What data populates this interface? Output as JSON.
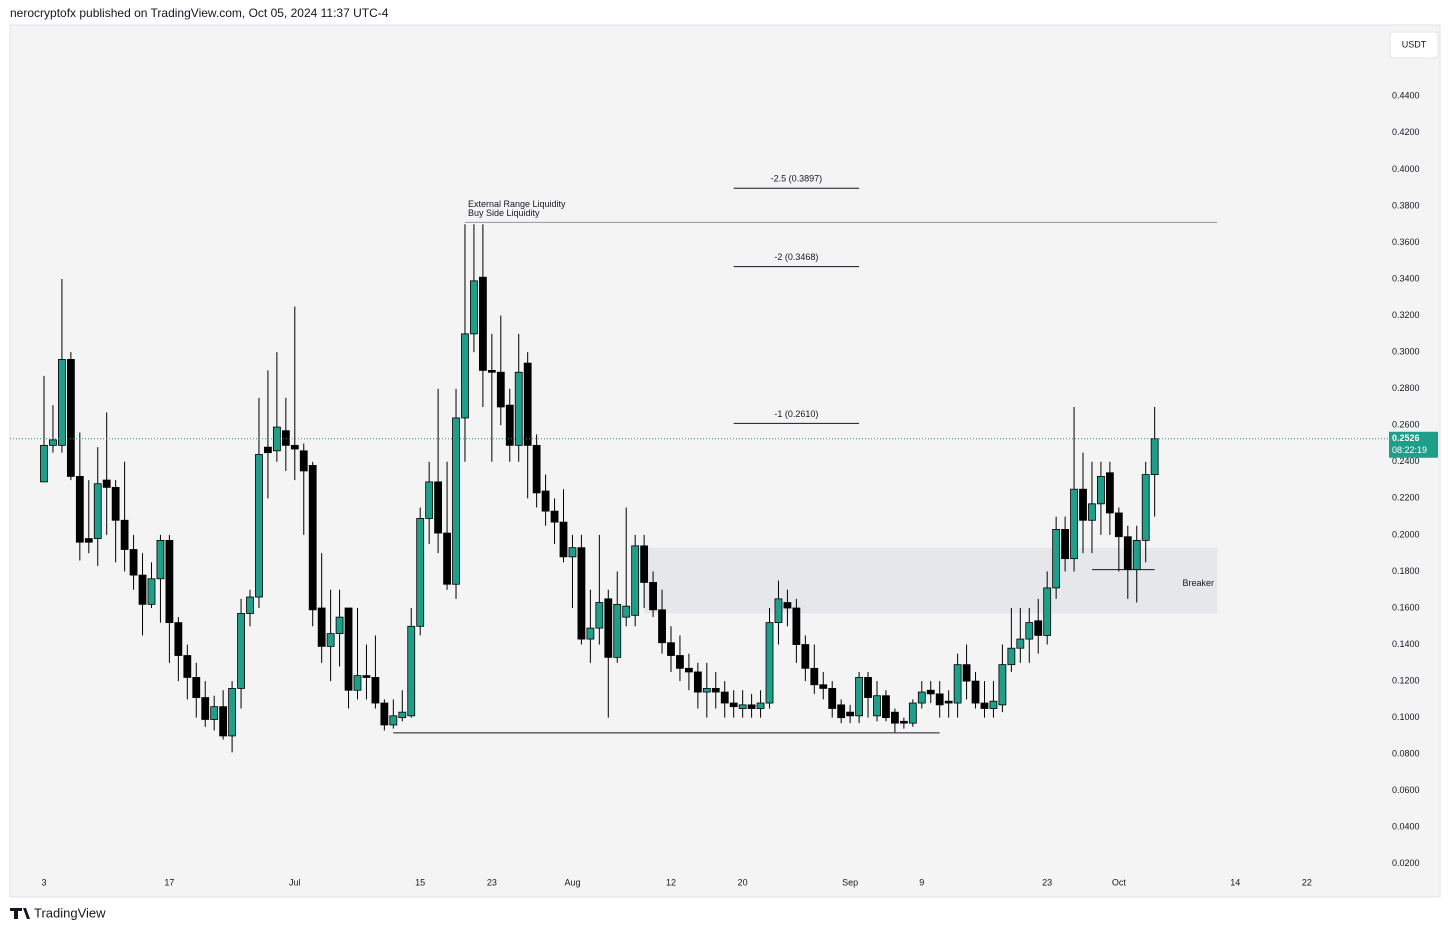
{
  "header": "nerocryptofx published on TradingView.com, Oct 05, 2024 11:37 UTC-4",
  "footer": "TradingView",
  "chart_data": {
    "type": "candlestick",
    "currency": "USDT",
    "up_color": "#1f9e89",
    "down_color": "#000000",
    "categories": [
      "3",
      null,
      null,
      null,
      null,
      null,
      null,
      null,
      null,
      null,
      null,
      null,
      null,
      null,
      "17",
      null,
      null,
      null,
      null,
      null,
      null,
      null,
      null,
      null,
      null,
      null,
      null,
      null,
      "Jul",
      null,
      null,
      null,
      null,
      null,
      null,
      null,
      null,
      null,
      null,
      null,
      null,
      null,
      "15",
      null,
      null,
      null,
      null,
      null,
      null,
      null,
      "23",
      null,
      null,
      null,
      null,
      null,
      null,
      null,
      null,
      "Aug",
      null,
      null,
      null,
      null,
      null,
      null,
      null,
      null,
      null,
      null,
      "12",
      null,
      null,
      null,
      null,
      null,
      null,
      null,
      "20",
      null,
      null,
      null,
      null,
      null,
      null,
      null,
      null,
      null,
      null,
      null,
      "Sep",
      null,
      null,
      null,
      null,
      null,
      null,
      null,
      "9",
      null,
      null,
      null,
      null,
      null,
      null,
      null,
      null,
      null,
      null,
      null,
      null,
      null,
      "23",
      null,
      null,
      null,
      null,
      null,
      null,
      null,
      "Oct",
      null,
      null,
      null,
      null,
      null,
      null,
      null,
      null,
      null,
      null,
      null,
      null,
      "14",
      null,
      null,
      null,
      null,
      null,
      null,
      null,
      "22",
      null,
      null,
      null,
      null,
      null,
      null,
      null,
      null
    ],
    "open": [
      0.229,
      0.249,
      0.249,
      0.296,
      0.232,
      0.198,
      0.198,
      0.23,
      0.226,
      0.208,
      0.192,
      0.178,
      0.162,
      0.176,
      0.197,
      0.152,
      0.134,
      0.122,
      0.111,
      0.099,
      0.106,
      0.09,
      0.116,
      0.157,
      0.166,
      0.248,
      0.246,
      0.257,
      0.249,
      0.246,
      0.238,
      0.16,
      0.139,
      0.146,
      0.16,
      0.115,
      0.123,
      0.122,
      0.108,
      0.096,
      0.1,
      0.101,
      0.15,
      0.209,
      0.229,
      0.201,
      0.173,
      0.264,
      0.31,
      0.341,
      0.29,
      0.289,
      0.271,
      0.249,
      0.294,
      0.249,
      0.224,
      0.213,
      0.207,
      0.188,
      0.193,
      0.143,
      0.149,
      0.165,
      0.133,
      0.155,
      0.156,
      0.194,
      0.174,
      0.159,
      0.141,
      0.134,
      0.127,
      0.125,
      0.114,
      0.116,
      0.114,
      0.108,
      0.105,
      0.107,
      0.105,
      0.108,
      0.152,
      0.163,
      0.16,
      0.14,
      0.127,
      0.118,
      0.116,
      0.107,
      0.103,
      0.101,
      0.122,
      0.101,
      0.112,
      0.103,
      0.098,
      0.097,
      0.108,
      0.115,
      0.113,
      0.109,
      0.108,
      0.129,
      0.12,
      0.108,
      0.105,
      0.107,
      0.129,
      0.138,
      0.143,
      0.153,
      0.145,
      0.171,
      0.203,
      0.187,
      0.225,
      0.208,
      0.217,
      0.234,
      0.212,
      0.199,
      0.181,
      0.197,
      0.233,
      null,
      null,
      null,
      null,
      null,
      null,
      null,
      null,
      null,
      null,
      null,
      null,
      null,
      null,
      null,
      null,
      null,
      null,
      null,
      null,
      null,
      null,
      null,
      null,
      null
    ],
    "high": [
      0.287,
      0.271,
      0.34,
      0.3,
      0.256,
      0.23,
      0.248,
      0.267,
      0.23,
      0.24,
      0.2,
      0.19,
      0.185,
      0.2,
      0.2,
      0.155,
      0.14,
      0.13,
      0.12,
      0.112,
      0.115,
      0.12,
      0.165,
      0.17,
      0.275,
      0.29,
      0.3,
      0.275,
      0.325,
      0.25,
      0.24,
      0.19,
      0.17,
      0.17,
      0.16,
      0.16,
      0.14,
      0.145,
      0.11,
      0.11,
      0.115,
      0.16,
      0.215,
      0.24,
      0.28,
      0.24,
      0.28,
      0.37,
      0.37,
      0.37,
      0.31,
      0.32,
      0.28,
      0.31,
      0.3,
      0.255,
      0.233,
      0.22,
      0.225,
      0.2,
      0.2,
      0.17,
      0.2,
      0.17,
      0.18,
      0.215,
      0.2,
      0.2,
      0.18,
      0.17,
      0.15,
      0.145,
      0.135,
      0.13,
      0.13,
      0.125,
      0.12,
      0.115,
      0.115,
      0.113,
      0.115,
      0.16,
      0.175,
      0.17,
      0.165,
      0.145,
      0.14,
      0.125,
      0.12,
      0.11,
      0.107,
      0.125,
      0.125,
      0.12,
      0.115,
      0.105,
      0.1,
      0.11,
      0.12,
      0.12,
      0.12,
      0.115,
      0.135,
      0.14,
      0.125,
      0.12,
      0.12,
      0.14,
      0.16,
      0.16,
      0.16,
      0.165,
      0.18,
      0.21,
      0.21,
      0.27,
      0.245,
      0.24,
      0.24,
      0.24,
      0.215,
      0.205,
      0.205,
      0.24,
      0.27,
      null,
      null,
      null,
      null,
      null,
      null,
      null,
      null,
      null,
      null,
      null,
      null,
      null,
      null,
      null,
      null,
      null,
      null,
      null,
      null,
      null,
      null,
      null,
      null,
      null
    ],
    "low": [
      0.229,
      0.245,
      0.245,
      0.23,
      0.186,
      0.19,
      0.183,
      0.2,
      0.185,
      0.18,
      0.17,
      0.145,
      0.16,
      0.152,
      0.13,
      0.12,
      0.11,
      0.1,
      0.095,
      0.093,
      0.088,
      0.081,
      0.105,
      0.15,
      0.16,
      0.22,
      0.24,
      0.235,
      0.23,
      0.2,
      0.15,
      0.13,
      0.12,
      0.128,
      0.105,
      0.11,
      0.11,
      0.105,
      0.093,
      0.094,
      0.098,
      0.1,
      0.145,
      0.195,
      0.19,
      0.17,
      0.165,
      0.24,
      0.3,
      0.27,
      0.24,
      0.26,
      0.24,
      0.24,
      0.22,
      0.215,
      0.205,
      0.195,
      0.185,
      0.16,
      0.14,
      0.13,
      0.14,
      0.1,
      0.13,
      0.15,
      0.15,
      0.16,
      0.155,
      0.135,
      0.125,
      0.12,
      0.115,
      0.105,
      0.1,
      0.105,
      0.1,
      0.1,
      0.1,
      0.1,
      0.1,
      0.105,
      0.14,
      0.15,
      0.13,
      0.12,
      0.113,
      0.11,
      0.1,
      0.097,
      0.097,
      0.097,
      0.1,
      0.098,
      0.098,
      0.092,
      0.094,
      0.095,
      0.105,
      0.108,
      0.1,
      0.1,
      0.1,
      0.11,
      0.105,
      0.1,
      0.1,
      0.103,
      0.125,
      0.13,
      0.13,
      0.135,
      0.14,
      0.165,
      0.18,
      0.18,
      0.19,
      0.19,
      0.2,
      0.2,
      0.18,
      0.165,
      0.163,
      0.185,
      0.21,
      null,
      null,
      null,
      null,
      null,
      null,
      null,
      null,
      null,
      null,
      null,
      null,
      null,
      null,
      null,
      null,
      null,
      null,
      null,
      null,
      null,
      null,
      null,
      null,
      null
    ],
    "close": [
      0.249,
      0.252,
      0.296,
      0.232,
      0.196,
      0.196,
      0.228,
      0.226,
      0.208,
      0.192,
      0.178,
      0.162,
      0.176,
      0.197,
      0.152,
      0.134,
      0.122,
      0.111,
      0.099,
      0.106,
      0.09,
      0.116,
      0.157,
      0.166,
      0.244,
      0.245,
      0.259,
      0.249,
      0.247,
      0.235,
      0.159,
      0.139,
      0.146,
      0.155,
      0.115,
      0.123,
      0.122,
      0.108,
      0.096,
      0.101,
      0.103,
      0.15,
      0.209,
      0.229,
      0.201,
      0.173,
      0.264,
      0.31,
      0.339,
      0.29,
      0.289,
      0.27,
      0.249,
      0.289,
      0.249,
      0.223,
      0.213,
      0.207,
      0.188,
      0.193,
      0.143,
      0.149,
      0.163,
      0.133,
      0.162,
      0.161,
      0.194,
      0.174,
      0.159,
      0.141,
      0.134,
      0.127,
      0.125,
      0.114,
      0.116,
      0.114,
      0.108,
      0.106,
      0.107,
      0.105,
      0.108,
      0.152,
      0.165,
      0.16,
      0.14,
      0.127,
      0.118,
      0.116,
      0.105,
      0.1,
      0.101,
      0.122,
      0.111,
      0.112,
      0.1,
      0.097,
      0.097,
      0.108,
      0.114,
      0.113,
      0.107,
      0.108,
      0.129,
      0.12,
      0.108,
      0.105,
      0.109,
      0.129,
      0.138,
      0.143,
      0.152,
      0.145,
      0.171,
      0.203,
      0.187,
      0.225,
      0.208,
      0.217,
      0.232,
      0.212,
      0.199,
      0.181,
      0.197,
      0.233,
      0.2526,
      null,
      null,
      null,
      null,
      null,
      null,
      null,
      null,
      null,
      null,
      null,
      null,
      null,
      null,
      null,
      null,
      null,
      null,
      null,
      null,
      null,
      null,
      null,
      null,
      null
    ],
    "ylim": [
      0.015,
      0.479
    ],
    "yticks": [
      {
        "value": 0.02,
        "label": "0.0200"
      },
      {
        "value": 0.04,
        "label": "0.0400"
      },
      {
        "value": 0.06,
        "label": "0.0600"
      },
      {
        "value": 0.08,
        "label": "0.0800"
      },
      {
        "value": 0.1,
        "label": "0.1000"
      },
      {
        "value": 0.12,
        "label": "0.1200"
      },
      {
        "value": 0.14,
        "label": "0.1400"
      },
      {
        "value": 0.16,
        "label": "0.1600"
      },
      {
        "value": 0.18,
        "label": "0.1800"
      },
      {
        "value": 0.2,
        "label": "0.2000"
      },
      {
        "value": 0.22,
        "label": "0.2200"
      },
      {
        "value": 0.24,
        "label": "0.2400"
      },
      {
        "value": 0.26,
        "label": "0.2600"
      },
      {
        "value": 0.28,
        "label": "0.2800"
      },
      {
        "value": 0.3,
        "label": "0.3000"
      },
      {
        "value": 0.32,
        "label": "0.3200"
      },
      {
        "value": 0.34,
        "label": "0.3400"
      },
      {
        "value": 0.36,
        "label": "0.3600"
      },
      {
        "value": 0.38,
        "label": "0.3800"
      },
      {
        "value": 0.4,
        "label": "0.4000"
      },
      {
        "value": 0.42,
        "label": "0.4200"
      },
      {
        "value": 0.44,
        "label": "0.4400"
      }
    ],
    "last_price": 0.2526,
    "countdown": "08:22:19",
    "levels": [
      {
        "label": "-2.5 (0.3897)",
        "value": 0.3897
      },
      {
        "label": "-2 (0.3468)",
        "value": 0.3468
      },
      {
        "label": "-1 (0.2610)",
        "value": 0.261
      }
    ],
    "liquidity": {
      "labels": [
        "External Range Liquidity",
        "Buy Side Liquidity"
      ],
      "value": 0.371
    },
    "range_low": 0.0917,
    "breaker": {
      "label": "Breaker",
      "top": 0.193,
      "bottom": 0.157,
      "level": 0.181
    }
  }
}
